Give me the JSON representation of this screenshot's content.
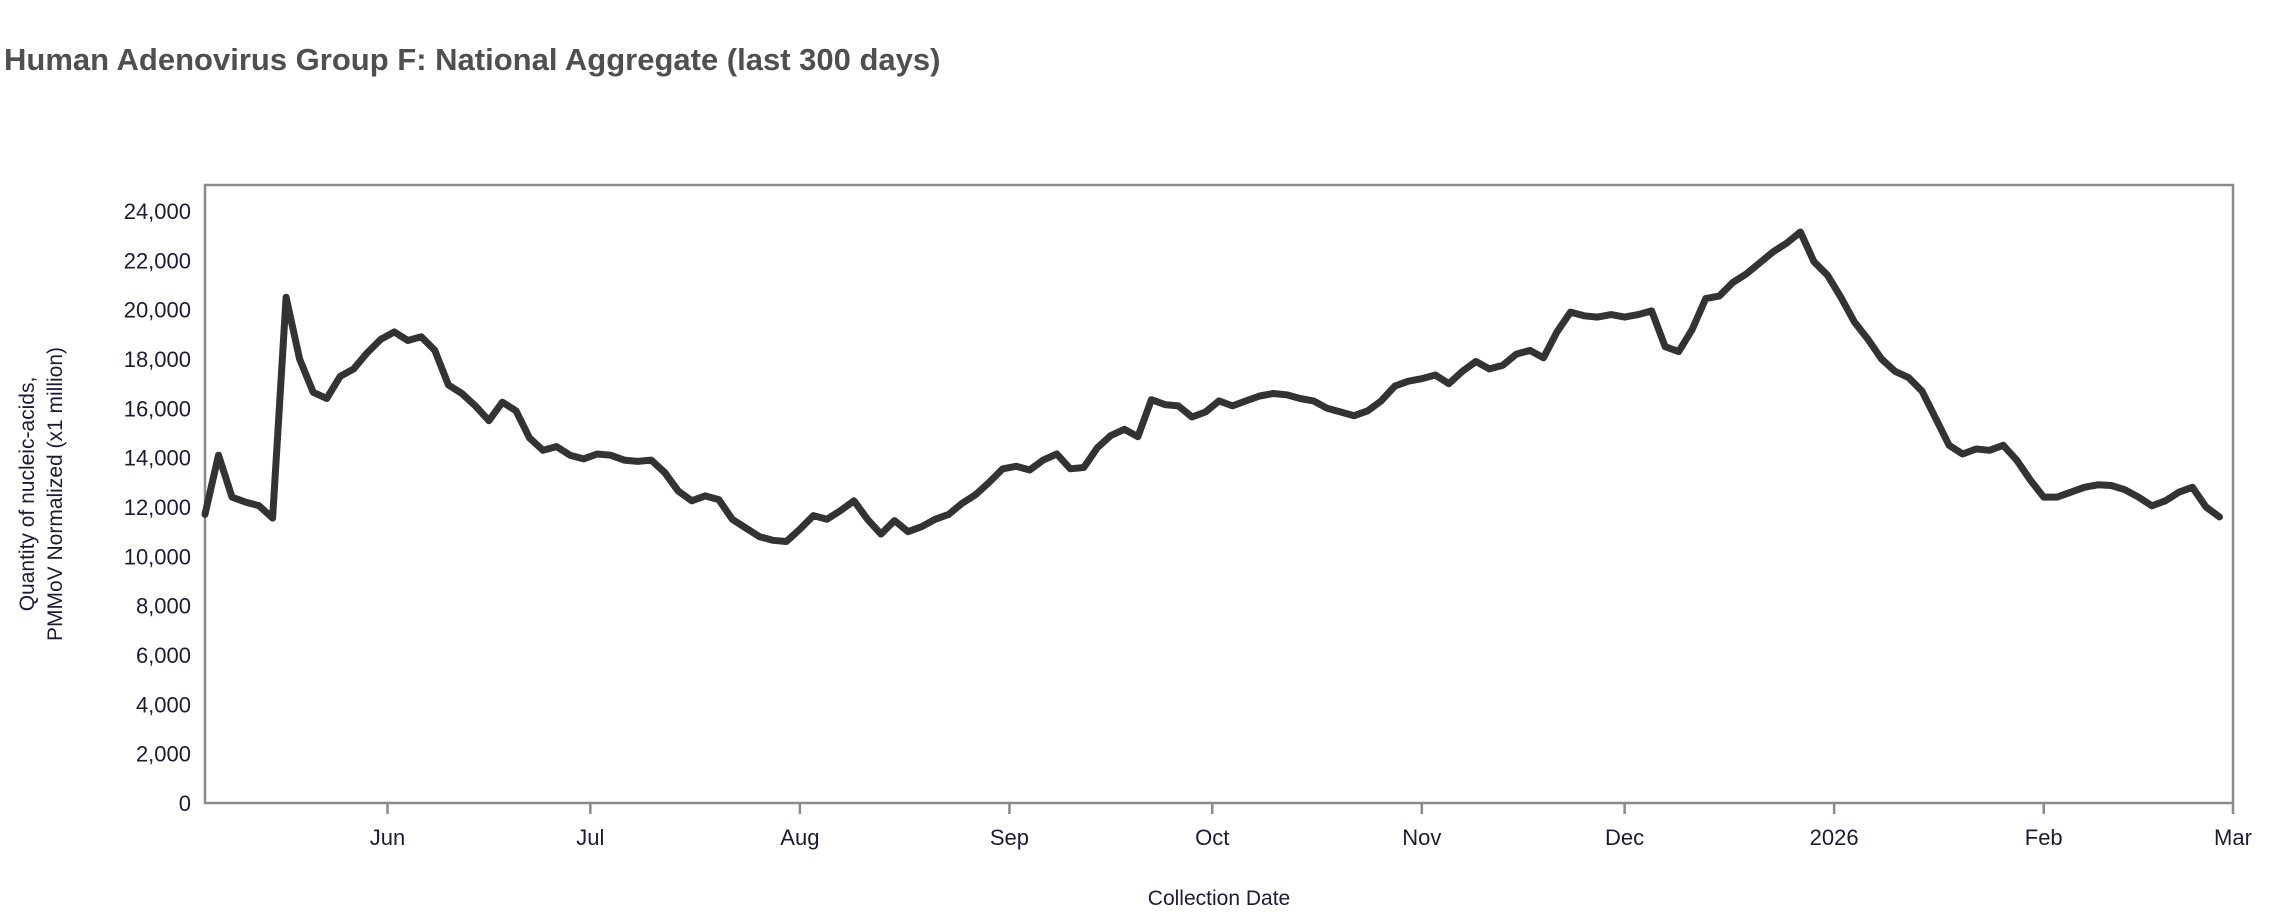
{
  "title": "Human Adenovirus Group F: National Aggregate (last 300 days)",
  "colors": {
    "line": "#333333",
    "frame": "#8a8a8a",
    "tick_text": "#1b1b38",
    "title_text": "#4f4f4f",
    "background": "#ffffff"
  },
  "chart_data": {
    "type": "line",
    "title": "Human Adenovirus Group F: National Aggregate (last 300 days)",
    "xlabel": "Collection Date",
    "ylabel_line1": "Quantity of nucleic-acids,",
    "ylabel_line2": "PMMoV Normalized (x1 million)",
    "ylim": [
      0,
      24000
    ],
    "ytick_step": 2000,
    "grid": "off",
    "legend": "none",
    "x_domain_days": 300,
    "start_date": "2025-05-05",
    "interval_days": 2,
    "xticks": [
      {
        "label": "Jun",
        "day": 27
      },
      {
        "label": "Jul",
        "day": 57
      },
      {
        "label": "Aug",
        "day": 88
      },
      {
        "label": "Sep",
        "day": 119
      },
      {
        "label": "Oct",
        "day": 149
      },
      {
        "label": "Nov",
        "day": 180
      },
      {
        "label": "Dec",
        "day": 210
      },
      {
        "label": "2026",
        "day": 241
      },
      {
        "label": "Feb",
        "day": 272
      },
      {
        "label": "Mar",
        "day": 300
      }
    ],
    "values": [
      11700,
      14100,
      12400,
      12200,
      12050,
      11550,
      20500,
      18000,
      16650,
      16400,
      17300,
      17600,
      18250,
      18800,
      19100,
      18750,
      18900,
      18350,
      16950,
      16600,
      16100,
      15500,
      16250,
      15900,
      14800,
      14300,
      14450,
      14100,
      13950,
      14150,
      14100,
      13900,
      13850,
      13900,
      13400,
      12650,
      12250,
      12450,
      12300,
      11500,
      11150,
      10800,
      10650,
      10600,
      11100,
      11650,
      11500,
      11850,
      12250,
      11500,
      10900,
      11450,
      11000,
      11200,
      11500,
      11700,
      12150,
      12500,
      13000,
      13550,
      13650,
      13500,
      13900,
      14150,
      13550,
      13600,
      14400,
      14900,
      15150,
      14850,
      16350,
      16150,
      16100,
      15650,
      15850,
      16300,
      16100,
      16300,
      16500,
      16600,
      16550,
      16400,
      16300,
      16000,
      15850,
      15700,
      15900,
      16300,
      16900,
      17100,
      17200,
      17350,
      17000,
      17500,
      17900,
      17600,
      17750,
      18200,
      18350,
      18050,
      19100,
      19900,
      19750,
      19700,
      19800,
      19700,
      19800,
      19950,
      18500,
      18300,
      19200,
      20450,
      20550,
      21100,
      21450,
      21900,
      22350,
      22700,
      23150,
      21950,
      21400,
      20500,
      19500,
      18800,
      18000,
      17500,
      17250,
      16700,
      15600,
      14500,
      14150,
      14350,
      14300,
      14500,
      13900,
      13100,
      12400,
      12400,
      12600,
      12800,
      12900,
      12870,
      12700,
      12400,
      12050,
      12250,
      12600,
      12800,
      12000,
      11600
    ]
  }
}
